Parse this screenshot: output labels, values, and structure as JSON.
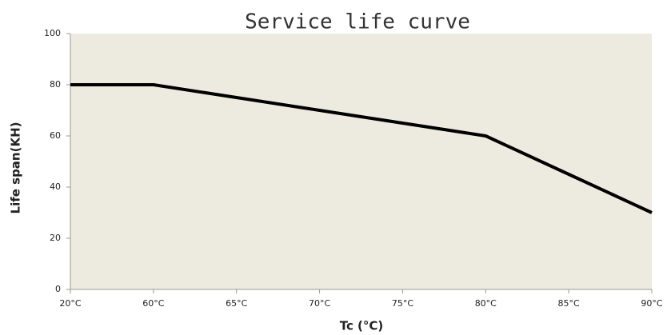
{
  "chart_data": {
    "type": "line",
    "title": "Service life curve",
    "x_label": "Tc (°C)",
    "y_label": "Life span(KH)",
    "categories": [
      "20°C",
      "60°C",
      "65°C",
      "70°C",
      "75°C",
      "80°C",
      "85°C",
      "90°C"
    ],
    "series": [
      {
        "name": "Life span",
        "color": "#000000",
        "values": [
          80,
          80,
          75,
          70,
          65,
          60,
          45,
          30
        ]
      }
    ],
    "ylim": [
      0,
      100
    ],
    "yticks": [
      0,
      20,
      40,
      60,
      80,
      100
    ],
    "background": "#edeae0"
  }
}
